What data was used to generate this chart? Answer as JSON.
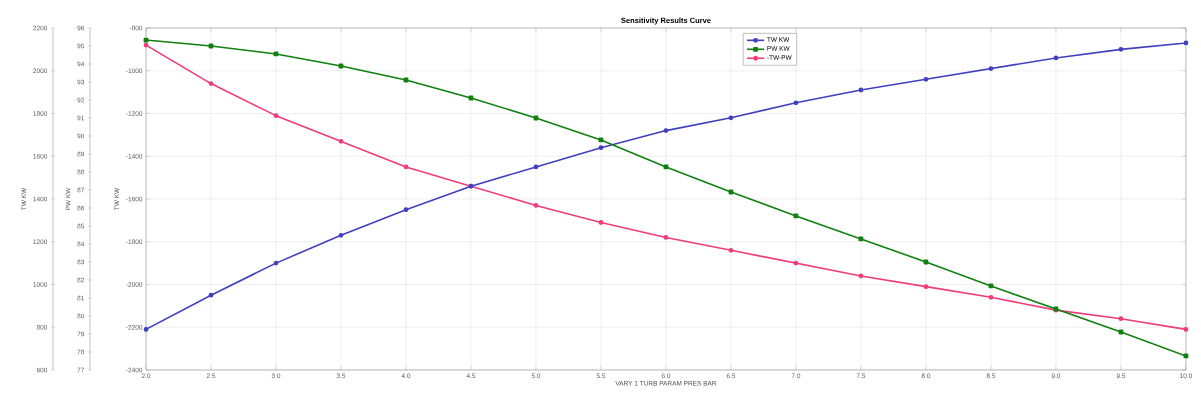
{
  "chart_data": {
    "type": "line",
    "title": "Sensitivity Results Curve",
    "xlabel": "VARY   1 TURB PARAM PRES BAR",
    "ylabel": "TW KW",
    "y2label": "PW KW",
    "y3label": "TW KW",
    "x": [
      2.0,
      2.5,
      3.0,
      3.5,
      4.0,
      4.5,
      5.0,
      5.5,
      6.0,
      6.5,
      7.0,
      7.5,
      8.0,
      8.5,
      9.0,
      9.5,
      10.0
    ],
    "series": [
      {
        "name": "TW KW",
        "color": "#4040c0",
        "axis": "y",
        "marker": "circle",
        "values": [
          790,
          950,
          1100,
          1230,
          1350,
          1460,
          1550,
          1640,
          1720,
          1780,
          1850,
          1910,
          1960,
          2010,
          2060,
          2100,
          2130
        ]
      },
      {
        "name": "PW KW",
        "color": "#108010",
        "axis": "y2",
        "marker": "square",
        "values": [
          95.33,
          95.0,
          94.56,
          93.89,
          93.11,
          92.11,
          91.0,
          89.78,
          88.28,
          86.89,
          85.56,
          84.28,
          83.0,
          81.67,
          80.39,
          79.11,
          77.78
        ]
      },
      {
        "name": "-TW-PW",
        "color": "#f03c78",
        "axis": "y3",
        "marker": "circle",
        "values": [
          -880,
          -1060,
          -1210,
          -1330,
          -1450,
          -1540,
          -1630,
          -1710,
          -1780,
          -1840,
          -1900,
          -1960,
          -2010,
          -2060,
          -2120,
          -2160,
          -2210
        ]
      }
    ],
    "xlim": [
      2.0,
      10.0
    ],
    "xticks": [
      {
        "value": 2.0,
        "label": "2.0"
      },
      2.5,
      {
        "value": 3.0,
        "label": "3.0"
      },
      3.5,
      {
        "value": 4.0,
        "label": "4.0"
      },
      4.5,
      {
        "value": 5.0,
        "label": "5.0"
      },
      5.5,
      {
        "value": 6.0,
        "label": "6.0"
      },
      6.5,
      {
        "value": 7.0,
        "label": "7.0"
      },
      7.5,
      {
        "value": 8.0,
        "label": "8.0"
      },
      8.5,
      {
        "value": 9.0,
        "label": "9.0"
      },
      9.5,
      {
        "value": 10.0,
        "label": "10.0"
      }
    ],
    "ylim": [
      600,
      2200
    ],
    "yticks": [
      600,
      800,
      1000,
      1200,
      1400,
      1600,
      1800,
      2000,
      2200
    ],
    "y2lim": [
      77,
      96
    ],
    "y2ticks": [
      77,
      78,
      79,
      80,
      81,
      82,
      83,
      84,
      85,
      86,
      87,
      88,
      89,
      90,
      91,
      92,
      93,
      94,
      95,
      96
    ],
    "y3lim": [
      -2400,
      -800
    ],
    "y3ticks": [
      -2400,
      -2200,
      -2000,
      -1800,
      -1600,
      -1400,
      -1200,
      -1000,
      -800
    ],
    "grid": true,
    "legend": "top",
    "line_style": "solid"
  }
}
